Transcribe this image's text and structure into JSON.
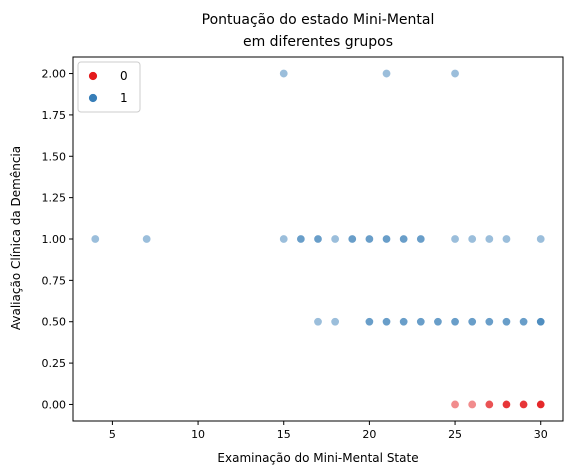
{
  "chart_data": {
    "type": "scatter",
    "title_line1": "Pontuação do estado Mini-Mental",
    "title_line2": "em diferentes grupos",
    "xlabel": "Examinação do Mini-Mental State",
    "ylabel": "Avaliação Clínica da Demência",
    "xlim": [
      2.7,
      31.3
    ],
    "ylim": [
      -0.1,
      2.1
    ],
    "xticks": [
      5,
      10,
      15,
      20,
      25,
      30
    ],
    "yticks": [
      0.0,
      0.25,
      0.5,
      0.75,
      1.0,
      1.25,
      1.5,
      1.75,
      2.0
    ],
    "xtick_labels": [
      "5",
      "10",
      "15",
      "20",
      "25",
      "30"
    ],
    "ytick_labels": [
      "0.00",
      "0.25",
      "0.50",
      "0.75",
      "1.00",
      "1.25",
      "1.50",
      "1.75",
      "2.00"
    ],
    "legend_position": "upper-left",
    "series": [
      {
        "name": "0",
        "color": "#e41a1c",
        "points": [
          {
            "x": 25,
            "y": 0.0
          },
          {
            "x": 26,
            "y": 0.0
          },
          {
            "x": 27,
            "y": 0.0
          },
          {
            "x": 27,
            "y": 0.0
          },
          {
            "x": 28,
            "y": 0.0
          },
          {
            "x": 28,
            "y": 0.0
          },
          {
            "x": 28,
            "y": 0.0
          },
          {
            "x": 29,
            "y": 0.0
          },
          {
            "x": 29,
            "y": 0.0
          },
          {
            "x": 29,
            "y": 0.0
          },
          {
            "x": 30,
            "y": 0.0
          },
          {
            "x": 30,
            "y": 0.0
          },
          {
            "x": 30,
            "y": 0.0
          },
          {
            "x": 30,
            "y": 0.0
          }
        ]
      },
      {
        "name": "1",
        "color": "#377eb8",
        "points": [
          {
            "x": 15,
            "y": 2.0
          },
          {
            "x": 21,
            "y": 2.0
          },
          {
            "x": 25,
            "y": 2.0
          },
          {
            "x": 4,
            "y": 1.0
          },
          {
            "x": 7,
            "y": 1.0
          },
          {
            "x": 15,
            "y": 1.0
          },
          {
            "x": 16,
            "y": 1.0
          },
          {
            "x": 16,
            "y": 1.0
          },
          {
            "x": 17,
            "y": 1.0
          },
          {
            "x": 17,
            "y": 1.0
          },
          {
            "x": 18,
            "y": 1.0
          },
          {
            "x": 19,
            "y": 1.0
          },
          {
            "x": 19,
            "y": 1.0
          },
          {
            "x": 20,
            "y": 1.0
          },
          {
            "x": 20,
            "y": 1.0
          },
          {
            "x": 21,
            "y": 1.0
          },
          {
            "x": 21,
            "y": 1.0
          },
          {
            "x": 22,
            "y": 1.0
          },
          {
            "x": 22,
            "y": 1.0
          },
          {
            "x": 23,
            "y": 1.0
          },
          {
            "x": 23,
            "y": 1.0
          },
          {
            "x": 25,
            "y": 1.0
          },
          {
            "x": 26,
            "y": 1.0
          },
          {
            "x": 27,
            "y": 1.0
          },
          {
            "x": 28,
            "y": 1.0
          },
          {
            "x": 30,
            "y": 1.0
          },
          {
            "x": 17,
            "y": 0.5
          },
          {
            "x": 18,
            "y": 0.5
          },
          {
            "x": 20,
            "y": 0.5
          },
          {
            "x": 20,
            "y": 0.5
          },
          {
            "x": 21,
            "y": 0.5
          },
          {
            "x": 21,
            "y": 0.5
          },
          {
            "x": 22,
            "y": 0.5
          },
          {
            "x": 22,
            "y": 0.5
          },
          {
            "x": 23,
            "y": 0.5
          },
          {
            "x": 23,
            "y": 0.5
          },
          {
            "x": 24,
            "y": 0.5
          },
          {
            "x": 24,
            "y": 0.5
          },
          {
            "x": 25,
            "y": 0.5
          },
          {
            "x": 25,
            "y": 0.5
          },
          {
            "x": 26,
            "y": 0.5
          },
          {
            "x": 26,
            "y": 0.5
          },
          {
            "x": 27,
            "y": 0.5
          },
          {
            "x": 27,
            "y": 0.5
          },
          {
            "x": 28,
            "y": 0.5
          },
          {
            "x": 28,
            "y": 0.5
          },
          {
            "x": 29,
            "y": 0.5
          },
          {
            "x": 29,
            "y": 0.5
          },
          {
            "x": 30,
            "y": 0.5
          },
          {
            "x": 30,
            "y": 0.5
          },
          {
            "x": 30,
            "y": 0.5
          }
        ]
      }
    ]
  }
}
